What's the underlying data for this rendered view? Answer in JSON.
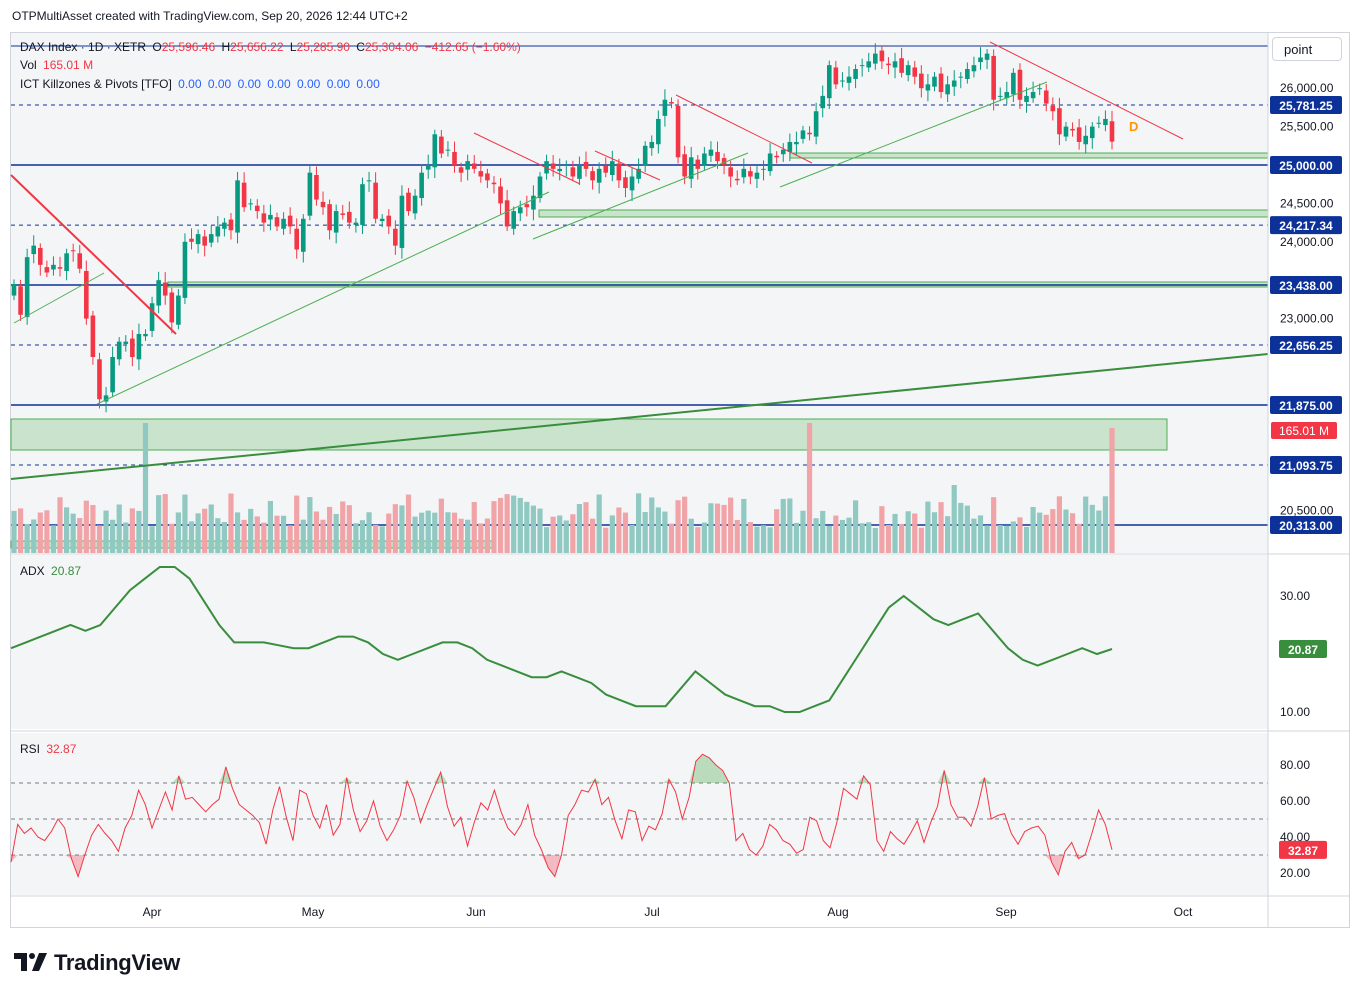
{
  "header": {
    "credit": "OTPMultiAsset created with TradingView.com, Sep 20, 2026 12:44 UTC+2"
  },
  "scale_mode": "point",
  "legend": {
    "symbol": "DAX Index · 1D · XETR",
    "open_label": "O",
    "open": "25,596.46",
    "high_label": "H",
    "high": "25,656.22",
    "low_label": "L",
    "low": "25,285.90",
    "close_label": "C",
    "close": "25,304.06",
    "change": "−412.65 (−1.60%)",
    "vol_label": "Vol",
    "vol": "165.01 M",
    "indicator": "ICT Killzones & Pivots [TFO]",
    "indicator_values": [
      "0.00",
      "0.00",
      "0.00",
      "0.00",
      "0.00",
      "0.00",
      "0.00"
    ],
    "adx_label": "ADX",
    "adx": "20.87",
    "rsi_label": "RSI",
    "rsi": "32.87"
  },
  "logo": {
    "text": "TradingView"
  },
  "colors": {
    "up": "#089981",
    "down": "#f23645",
    "vol_up": "#8fc9c2",
    "vol_down": "#f0a4a8",
    "level_line": "#0c3299",
    "green_line": "#4caf50",
    "red_line": "#f23645",
    "adx_line": "#388e3c",
    "rsi_line": "#f23645",
    "marker": "#ff9800"
  },
  "chart_data": [
    {
      "type": "candlestick",
      "title": "DAX Index · 1D · XETR",
      "x_labels": [
        "Apr",
        "May",
        "Jun",
        "Jul",
        "Aug",
        "Sep",
        "Oct"
      ],
      "ylim": [
        20000,
        26600
      ],
      "y_ticks": [
        "26,000.00",
        "25,500.00",
        "24,500.00",
        "24,000.00",
        "23,000.00",
        "20,500.00"
      ],
      "price_levels": [
        {
          "value": 25781.25,
          "label": "25,781.25",
          "style": "dashed"
        },
        {
          "value": 25000.0,
          "label": "25,000.00",
          "style": "solid"
        },
        {
          "value": 24217.34,
          "label": "24,217.34",
          "style": "dashed"
        },
        {
          "value": 23438.0,
          "label": "23,438.00",
          "style": "solid"
        },
        {
          "value": 22656.25,
          "label": "22,656.25",
          "style": "dashed"
        },
        {
          "value": 21875.0,
          "label": "21,875.00",
          "style": "solid"
        },
        {
          "value": 21093.75,
          "label": "21,093.75",
          "style": "dashed"
        },
        {
          "value": 20313.0,
          "label": "20,313.00",
          "style": "solid"
        }
      ],
      "last_volume_label": "165.01 M",
      "marker_label": "D",
      "closes": [
        23450,
        23050,
        23800,
        23950,
        23700,
        23600,
        23700,
        23650,
        23850,
        23880,
        23650,
        23000,
        22500,
        21950,
        22000,
        22500,
        22700,
        22700,
        22500,
        22800,
        22800,
        23200,
        23500,
        23300,
        22950,
        23300,
        24000,
        24000,
        24100,
        23950,
        24100,
        24200,
        24250,
        24150,
        24800,
        24450,
        24500,
        24400,
        24250,
        24350,
        24200,
        24300,
        24200,
        23900,
        24300,
        24900,
        24550,
        24450,
        24150,
        24400,
        24350,
        24250,
        24250,
        24750,
        24800,
        24300,
        24300,
        24200,
        23950,
        24600,
        24400,
        24600,
        24900,
        25000,
        25400,
        25150,
        25200,
        25000,
        24900,
        25050,
        24950,
        24850,
        24800,
        24750,
        24500,
        24200,
        24400,
        24450,
        24450,
        24600,
        24850,
        25050,
        24950,
        24950,
        25000,
        24850,
        25000,
        24950,
        24800,
        24950,
        24900,
        25050,
        24800,
        24700,
        24850,
        24950,
        25250,
        25300,
        25600,
        25850,
        25800,
        25100,
        24850,
        25100,
        24950,
        25150,
        25200,
        25050,
        25000,
        24850,
        24800,
        24950,
        24850,
        24900,
        24950,
        25150,
        25100,
        25200,
        25300,
        25300,
        25450,
        25400,
        25700,
        25900,
        26300,
        26050,
        26100,
        26150,
        26250,
        26300,
        26350,
        26450,
        26350,
        26300,
        26350,
        26200,
        26300,
        26150,
        26000,
        26050,
        26150,
        25950,
        26050,
        26100,
        26150,
        26250,
        26300,
        26400,
        26450,
        25850,
        25900,
        25950,
        26200,
        25850,
        25900,
        25950,
        26000,
        25800,
        25700,
        25400,
        25500,
        25450,
        25300,
        25380,
        25500,
        25550,
        25600,
        25304
      ]
    },
    {
      "type": "line",
      "title": "ADX",
      "ylim": [
        8,
        36
      ],
      "y_ticks": [
        "30.00",
        "10.00"
      ],
      "last_value": "20.87",
      "values": [
        21,
        22,
        23,
        24,
        25,
        24,
        25,
        28,
        31,
        33,
        35,
        35,
        33,
        29,
        25,
        22,
        22,
        22,
        21.5,
        21,
        21,
        22,
        23,
        23,
        22,
        20,
        19,
        20,
        21,
        22,
        22,
        21,
        19,
        18,
        17,
        16,
        16,
        17,
        16,
        15,
        13,
        12,
        11,
        11,
        11,
        14,
        17,
        15,
        13,
        12,
        11,
        11,
        10,
        10,
        11,
        12,
        16,
        20,
        24,
        28,
        30,
        28,
        26,
        25,
        26,
        27,
        24,
        21,
        19,
        18,
        19,
        20,
        21,
        20,
        20.87
      ]
    },
    {
      "type": "line",
      "title": "RSI",
      "ylim": [
        10,
        94
      ],
      "y_ticks": [
        "80.00",
        "60.00",
        "40.00",
        "20.00"
      ],
      "ref_levels": [
        70,
        50,
        30
      ],
      "last_value": "32.87",
      "values": [
        26,
        47,
        42,
        45,
        40,
        38,
        43,
        50,
        45,
        28,
        18,
        30,
        41,
        47,
        42,
        38,
        32,
        45,
        52,
        66,
        58,
        45,
        55,
        65,
        55,
        74,
        61,
        62,
        58,
        54,
        58,
        61,
        79,
        67,
        58,
        55,
        52,
        48,
        36,
        55,
        68,
        51,
        38,
        66,
        64,
        52,
        45,
        58,
        41,
        47,
        73,
        55,
        43,
        49,
        60,
        46,
        38,
        44,
        52,
        71,
        62,
        48,
        58,
        67,
        76,
        57,
        46,
        51,
        35,
        48,
        59,
        55,
        66,
        54,
        45,
        41,
        47,
        58,
        41,
        33,
        23,
        18,
        30,
        52,
        58,
        66,
        65,
        72,
        58,
        62,
        49,
        39,
        55,
        54,
        38,
        46,
        44,
        53,
        72,
        65,
        50,
        62,
        82,
        86,
        84,
        80,
        77,
        70,
        38,
        42,
        33,
        30,
        35,
        47,
        44,
        38,
        36,
        31,
        33,
        51,
        49,
        38,
        34,
        48,
        67,
        64,
        61,
        74,
        69,
        38,
        32,
        43,
        39,
        36,
        42,
        49,
        37,
        48,
        57,
        77,
        58,
        51,
        51,
        46,
        57,
        73,
        50,
        52,
        53,
        42,
        36,
        43,
        45,
        46,
        41,
        26,
        19,
        32,
        37,
        28,
        30,
        42,
        55,
        47,
        32.87
      ]
    }
  ]
}
